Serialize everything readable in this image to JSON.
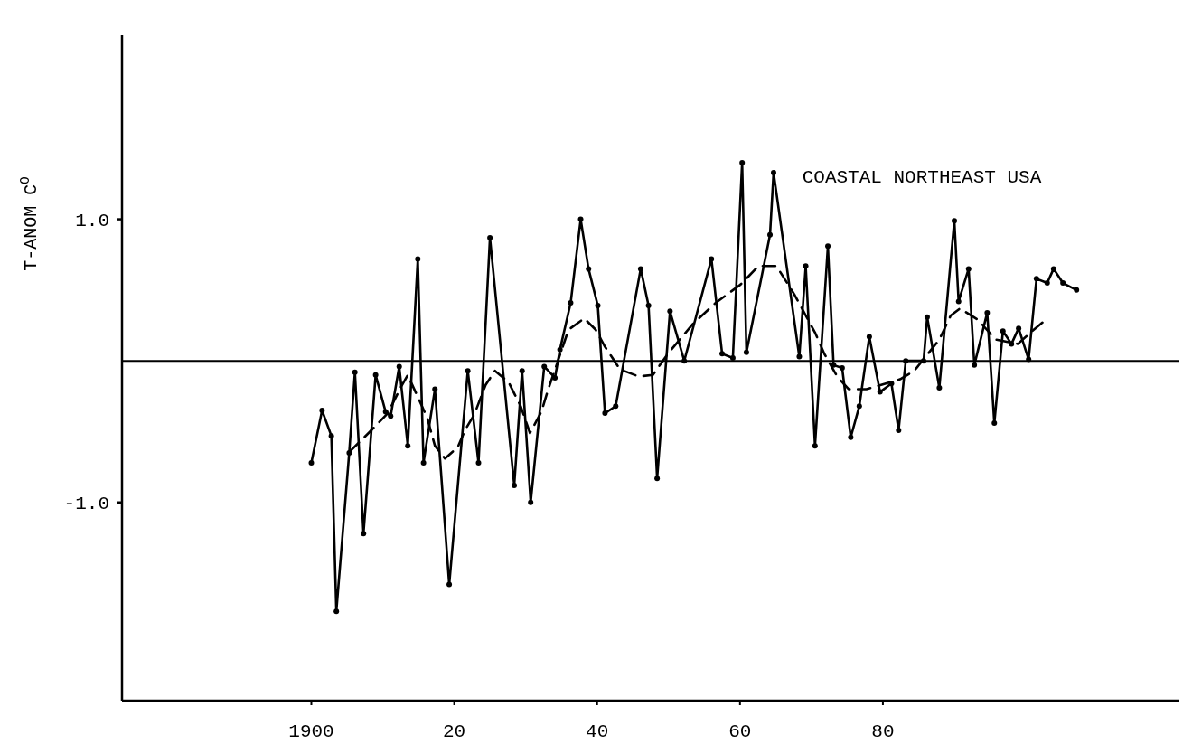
{
  "chart_data": {
    "type": "line",
    "ylabel": "T-ANOM C$^{O}$",
    "annotations": [
      "COASTAL NORTHEAST USA"
    ],
    "xlim": [
      1873.5,
      2021.5
    ],
    "ylim": [
      -2.4,
      2.3
    ],
    "xticks": [
      1900,
      {
        "value": 1920,
        "label": "20"
      },
      {
        "value": 1940,
        "label": "40"
      },
      {
        "value": 1960,
        "label": "60"
      },
      {
        "value": 1980,
        "label": "80"
      }
    ],
    "yticks": [
      {
        "value": -1,
        "label": "-1.0"
      },
      {
        "value": 1,
        "label": "1.0"
      }
    ],
    "grid": false,
    "ref_lines": [
      {
        "axis": "y",
        "value": 0,
        "color": "#000000"
      }
    ],
    "series": [
      {
        "color": "#000000",
        "marker": "circle",
        "line_style": "solid",
        "x": [
          1900.0,
          1901.5,
          1902.8,
          1903.5,
          1905.3,
          1906.1,
          1907.3,
          1909.0,
          1910.4,
          1911.1,
          1912.3,
          1913.5,
          1914.9,
          1915.7,
          1917.3,
          1919.3,
          1921.9,
          1923.4,
          1925.0,
          1928.4,
          1929.5,
          1930.7,
          1932.6,
          1934.1,
          1934.8,
          1936.3,
          1937.7,
          1938.8,
          1940.1,
          1941.1,
          1942.6,
          1946.1,
          1947.2,
          1948.4,
          1950.2,
          1952.2,
          1956.0,
          1957.5,
          1959.0,
          1960.3,
          1960.9,
          1964.2,
          1964.7,
          1968.3,
          1969.2,
          1970.5,
          1972.3,
          1973.1,
          1974.3,
          1975.5,
          1976.7,
          1978.1,
          1979.6,
          1981.2,
          1982.2,
          1983.2,
          1985.7,
          1986.2,
          1987.9,
          1990.0,
          1990.6,
          1992.0,
          1992.8,
          1994.6,
          1995.6,
          1996.8,
          1998.0,
          1999.0,
          2000.4,
          2001.5,
          2003.0,
          2003.9,
          2005.2,
          2007.1
        ],
        "values": [
          -0.72,
          -0.35,
          -0.53,
          -1.77,
          -0.65,
          -0.08,
          -1.22,
          -0.1,
          -0.36,
          -0.39,
          -0.04,
          -0.6,
          0.72,
          -0.72,
          -0.2,
          -1.58,
          -0.07,
          -0.72,
          0.87,
          -0.88,
          -0.07,
          -1.0,
          -0.04,
          -0.12,
          0.08,
          0.41,
          1.0,
          0.65,
          0.39,
          -0.37,
          -0.32,
          0.65,
          0.39,
          -0.83,
          0.35,
          0.0,
          0.72,
          0.05,
          0.02,
          1.4,
          0.06,
          0.89,
          1.33,
          0.03,
          0.67,
          -0.6,
          0.81,
          -0.03,
          -0.05,
          -0.54,
          -0.32,
          0.17,
          -0.22,
          -0.16,
          -0.49,
          0.0,
          0.0,
          0.31,
          -0.19,
          0.99,
          0.42,
          0.65,
          -0.03,
          0.34,
          -0.44,
          0.21,
          0.12,
          0.23,
          0.01,
          0.58,
          0.55,
          0.65,
          0.55,
          0.5
        ]
      },
      {
        "color": "#000000",
        "marker": "none",
        "line_style": "dashed",
        "x": [
          1905.4,
          1908.2,
          1910.7,
          1912.6,
          1913.5,
          1916.2,
          1917.3,
          1918.7,
          1920.5,
          1921.5,
          1922.8,
          1924.4,
          1925.7,
          1927.6,
          1929.3,
          1930.6,
          1932.2,
          1933.1,
          1936.0,
          1938.2,
          1939.8,
          1941.1,
          1943.2,
          1945.8,
          1947.8,
          1949.9,
          1953.4,
          1956.6,
          1960.1,
          1962.6,
          1965.1,
          1967.6,
          1970.5,
          1971.8,
          1973.6,
          1975.2,
          1977.7,
          1982.4,
          1984.4,
          1987.9,
          1989.5,
          1990.8,
          1993.3,
          1995.8,
          1998.9,
          2000.9,
          2002.8
        ],
        "values": [
          -0.64,
          -0.5,
          -0.37,
          -0.18,
          -0.1,
          -0.4,
          -0.6,
          -0.69,
          -0.61,
          -0.49,
          -0.38,
          -0.17,
          -0.07,
          -0.15,
          -0.32,
          -0.51,
          -0.36,
          -0.21,
          0.22,
          0.3,
          0.22,
          0.1,
          -0.06,
          -0.11,
          -0.1,
          0.05,
          0.26,
          0.41,
          0.54,
          0.67,
          0.67,
          0.47,
          0.2,
          0.05,
          -0.11,
          -0.2,
          -0.2,
          -0.13,
          -0.07,
          0.15,
          0.32,
          0.37,
          0.29,
          0.15,
          0.12,
          0.21,
          0.29
        ]
      }
    ]
  }
}
